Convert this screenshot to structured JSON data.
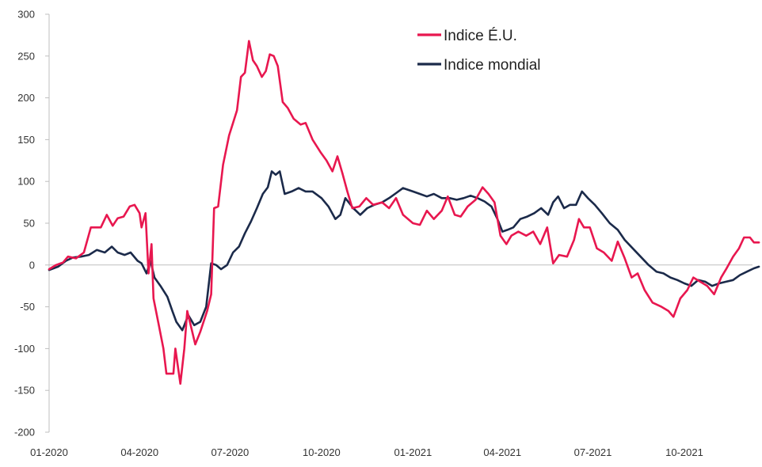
{
  "chart_data": {
    "type": "line",
    "title": "",
    "xlabel": "",
    "ylabel": "",
    "ylim": [
      -200,
      300
    ],
    "y_ticks": [
      -200,
      -150,
      -100,
      -50,
      0,
      50,
      100,
      150,
      200,
      250,
      300
    ],
    "x_ticks": [
      "01-2020",
      "04-2020",
      "07-2020",
      "10-2020",
      "01-2021",
      "04-2021",
      "07-2021",
      "10-2021"
    ],
    "x_range": [
      "2020-01-01",
      "2021-12-15"
    ],
    "grid": false,
    "legend_position": "top-right",
    "series": [
      {
        "name": "Indice É.U.",
        "color": "#e8174f",
        "points": [
          [
            "2020-01-01",
            -5
          ],
          [
            "2020-01-08",
            0
          ],
          [
            "2020-01-15",
            3
          ],
          [
            "2020-01-20",
            10
          ],
          [
            "2020-01-28",
            8
          ],
          [
            "2020-02-05",
            15
          ],
          [
            "2020-02-12",
            45
          ],
          [
            "2020-02-22",
            45
          ],
          [
            "2020-02-28",
            60
          ],
          [
            "2020-03-05",
            47
          ],
          [
            "2020-03-10",
            56
          ],
          [
            "2020-03-16",
            58
          ],
          [
            "2020-03-22",
            70
          ],
          [
            "2020-03-27",
            72
          ],
          [
            "2020-04-01",
            62
          ],
          [
            "2020-04-03",
            45
          ],
          [
            "2020-04-07",
            62
          ],
          [
            "2020-04-10",
            -10
          ],
          [
            "2020-04-13",
            25
          ],
          [
            "2020-04-15",
            -40
          ],
          [
            "2020-04-20",
            -70
          ],
          [
            "2020-04-25",
            -100
          ],
          [
            "2020-04-28",
            -130
          ],
          [
            "2020-05-05",
            -130
          ],
          [
            "2020-05-07",
            -100
          ],
          [
            "2020-05-12",
            -142
          ],
          [
            "2020-05-16",
            -100
          ],
          [
            "2020-05-19",
            -55
          ],
          [
            "2020-05-22",
            -70
          ],
          [
            "2020-05-27",
            -95
          ],
          [
            "2020-06-01",
            -80
          ],
          [
            "2020-06-08",
            -55
          ],
          [
            "2020-06-12",
            -35
          ],
          [
            "2020-06-15",
            68
          ],
          [
            "2020-06-19",
            70
          ],
          [
            "2020-06-24",
            120
          ],
          [
            "2020-06-30",
            155
          ],
          [
            "2020-07-04",
            170
          ],
          [
            "2020-07-08",
            185
          ],
          [
            "2020-07-12",
            225
          ],
          [
            "2020-07-16",
            230
          ],
          [
            "2020-07-20",
            268
          ],
          [
            "2020-07-24",
            245
          ],
          [
            "2020-07-28",
            238
          ],
          [
            "2020-08-02",
            225
          ],
          [
            "2020-08-06",
            232
          ],
          [
            "2020-08-10",
            252
          ],
          [
            "2020-08-14",
            250
          ],
          [
            "2020-08-18",
            238
          ],
          [
            "2020-08-23",
            195
          ],
          [
            "2020-08-28",
            188
          ],
          [
            "2020-09-03",
            175
          ],
          [
            "2020-09-10",
            168
          ],
          [
            "2020-09-15",
            170
          ],
          [
            "2020-09-22",
            150
          ],
          [
            "2020-09-30",
            135
          ],
          [
            "2020-10-06",
            125
          ],
          [
            "2020-10-12",
            112
          ],
          [
            "2020-10-17",
            130
          ],
          [
            "2020-10-22",
            110
          ],
          [
            "2020-10-27",
            88
          ],
          [
            "2020-11-01",
            68
          ],
          [
            "2020-11-08",
            70
          ],
          [
            "2020-11-15",
            80
          ],
          [
            "2020-11-22",
            72
          ],
          [
            "2020-12-01",
            75
          ],
          [
            "2020-12-08",
            68
          ],
          [
            "2020-12-15",
            80
          ],
          [
            "2020-12-22",
            60
          ],
          [
            "2021-01-01",
            50
          ],
          [
            "2021-01-08",
            48
          ],
          [
            "2021-01-15",
            65
          ],
          [
            "2021-01-22",
            55
          ],
          [
            "2021-01-30",
            65
          ],
          [
            "2021-02-05",
            82
          ],
          [
            "2021-02-12",
            60
          ],
          [
            "2021-02-18",
            58
          ],
          [
            "2021-02-25",
            70
          ],
          [
            "2021-03-05",
            78
          ],
          [
            "2021-03-12",
            93
          ],
          [
            "2021-03-18",
            85
          ],
          [
            "2021-03-24",
            75
          ],
          [
            "2021-03-30",
            35
          ],
          [
            "2021-04-05",
            25
          ],
          [
            "2021-04-10",
            35
          ],
          [
            "2021-04-17",
            40
          ],
          [
            "2021-04-25",
            35
          ],
          [
            "2021-05-02",
            40
          ],
          [
            "2021-05-09",
            25
          ],
          [
            "2021-05-16",
            45
          ],
          [
            "2021-05-22",
            2
          ],
          [
            "2021-05-28",
            12
          ],
          [
            "2021-06-05",
            10
          ],
          [
            "2021-06-12",
            30
          ],
          [
            "2021-06-17",
            55
          ],
          [
            "2021-06-22",
            45
          ],
          [
            "2021-06-28",
            45
          ],
          [
            "2021-07-05",
            20
          ],
          [
            "2021-07-12",
            15
          ],
          [
            "2021-07-20",
            5
          ],
          [
            "2021-07-26",
            28
          ],
          [
            "2021-08-02",
            8
          ],
          [
            "2021-08-09",
            -15
          ],
          [
            "2021-08-15",
            -10
          ],
          [
            "2021-08-22",
            -30
          ],
          [
            "2021-08-30",
            -45
          ],
          [
            "2021-09-08",
            -50
          ],
          [
            "2021-09-15",
            -55
          ],
          [
            "2021-09-20",
            -62
          ],
          [
            "2021-09-27",
            -40
          ],
          [
            "2021-10-04",
            -30
          ],
          [
            "2021-10-10",
            -15
          ],
          [
            "2021-10-17",
            -20
          ],
          [
            "2021-10-24",
            -25
          ],
          [
            "2021-10-31",
            -35
          ],
          [
            "2021-11-07",
            -15
          ],
          [
            "2021-11-12",
            -5
          ],
          [
            "2021-11-19",
            10
          ],
          [
            "2021-11-25",
            20
          ],
          [
            "2021-11-30",
            33
          ],
          [
            "2021-12-06",
            33
          ],
          [
            "2021-12-10",
            27
          ],
          [
            "2021-12-15",
            27
          ]
        ]
      },
      {
        "name": "Indice mondial",
        "color": "#1b2a4a",
        "points": [
          [
            "2020-01-01",
            -6
          ],
          [
            "2020-01-10",
            -2
          ],
          [
            "2020-01-18",
            5
          ],
          [
            "2020-01-25",
            9
          ],
          [
            "2020-02-02",
            10
          ],
          [
            "2020-02-10",
            12
          ],
          [
            "2020-02-18",
            18
          ],
          [
            "2020-02-26",
            15
          ],
          [
            "2020-03-04",
            22
          ],
          [
            "2020-03-10",
            15
          ],
          [
            "2020-03-17",
            12
          ],
          [
            "2020-03-23",
            15
          ],
          [
            "2020-03-30",
            5
          ],
          [
            "2020-04-03",
            2
          ],
          [
            "2020-04-08",
            -10
          ],
          [
            "2020-04-12",
            5
          ],
          [
            "2020-04-16",
            -15
          ],
          [
            "2020-04-22",
            -25
          ],
          [
            "2020-04-29",
            -38
          ],
          [
            "2020-05-04",
            -55
          ],
          [
            "2020-05-08",
            -68
          ],
          [
            "2020-05-14",
            -78
          ],
          [
            "2020-05-20",
            -60
          ],
          [
            "2020-05-26",
            -72
          ],
          [
            "2020-06-01",
            -68
          ],
          [
            "2020-06-07",
            -50
          ],
          [
            "2020-06-12",
            2
          ],
          [
            "2020-06-17",
            0
          ],
          [
            "2020-06-22",
            -5
          ],
          [
            "2020-06-28",
            0
          ],
          [
            "2020-07-04",
            15
          ],
          [
            "2020-07-10",
            22
          ],
          [
            "2020-07-16",
            38
          ],
          [
            "2020-07-22",
            52
          ],
          [
            "2020-07-28",
            68
          ],
          [
            "2020-08-03",
            85
          ],
          [
            "2020-08-08",
            93
          ],
          [
            "2020-08-12",
            112
          ],
          [
            "2020-08-16",
            108
          ],
          [
            "2020-08-20",
            112
          ],
          [
            "2020-08-25",
            85
          ],
          [
            "2020-09-01",
            88
          ],
          [
            "2020-09-08",
            92
          ],
          [
            "2020-09-15",
            88
          ],
          [
            "2020-09-22",
            88
          ],
          [
            "2020-10-01",
            80
          ],
          [
            "2020-10-08",
            70
          ],
          [
            "2020-10-15",
            55
          ],
          [
            "2020-10-20",
            60
          ],
          [
            "2020-10-25",
            80
          ],
          [
            "2020-11-02",
            68
          ],
          [
            "2020-11-09",
            60
          ],
          [
            "2020-11-16",
            68
          ],
          [
            "2020-11-23",
            72
          ],
          [
            "2020-12-01",
            75
          ],
          [
            "2020-12-08",
            80
          ],
          [
            "2020-12-15",
            86
          ],
          [
            "2020-12-22",
            92
          ],
          [
            "2021-01-01",
            88
          ],
          [
            "2021-01-08",
            85
          ],
          [
            "2021-01-15",
            82
          ],
          [
            "2021-01-22",
            85
          ],
          [
            "2021-01-30",
            80
          ],
          [
            "2021-02-07",
            80
          ],
          [
            "2021-02-14",
            78
          ],
          [
            "2021-02-21",
            80
          ],
          [
            "2021-02-28",
            83
          ],
          [
            "2021-03-07",
            80
          ],
          [
            "2021-03-14",
            76
          ],
          [
            "2021-03-21",
            70
          ],
          [
            "2021-03-27",
            55
          ],
          [
            "2021-04-01",
            40
          ],
          [
            "2021-04-06",
            42
          ],
          [
            "2021-04-12",
            45
          ],
          [
            "2021-04-19",
            55
          ],
          [
            "2021-04-26",
            58
          ],
          [
            "2021-05-03",
            62
          ],
          [
            "2021-05-10",
            68
          ],
          [
            "2021-05-17",
            60
          ],
          [
            "2021-05-22",
            75
          ],
          [
            "2021-05-27",
            82
          ],
          [
            "2021-06-02",
            68
          ],
          [
            "2021-06-08",
            72
          ],
          [
            "2021-06-14",
            72
          ],
          [
            "2021-06-20",
            88
          ],
          [
            "2021-06-26",
            80
          ],
          [
            "2021-07-03",
            72
          ],
          [
            "2021-07-10",
            62
          ],
          [
            "2021-07-18",
            50
          ],
          [
            "2021-07-26",
            42
          ],
          [
            "2021-08-02",
            30
          ],
          [
            "2021-08-10",
            20
          ],
          [
            "2021-08-18",
            10
          ],
          [
            "2021-08-26",
            0
          ],
          [
            "2021-09-03",
            -8
          ],
          [
            "2021-09-10",
            -10
          ],
          [
            "2021-09-17",
            -15
          ],
          [
            "2021-09-24",
            -18
          ],
          [
            "2021-10-01",
            -22
          ],
          [
            "2021-10-08",
            -25
          ],
          [
            "2021-10-15",
            -18
          ],
          [
            "2021-10-22",
            -20
          ],
          [
            "2021-10-29",
            -25
          ],
          [
            "2021-11-05",
            -22
          ],
          [
            "2021-11-12",
            -20
          ],
          [
            "2021-11-19",
            -18
          ],
          [
            "2021-11-26",
            -12
          ],
          [
            "2021-12-03",
            -8
          ],
          [
            "2021-12-10",
            -4
          ],
          [
            "2021-12-15",
            -2
          ]
        ]
      }
    ]
  }
}
